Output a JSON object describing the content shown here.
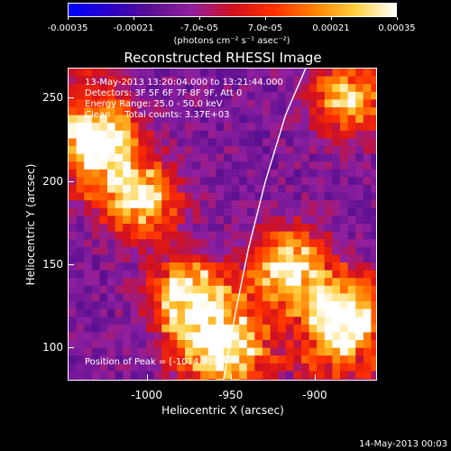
{
  "chart_data": {
    "type": "heatmap",
    "title": "Reconstructed RHESSI Image",
    "xlabel": "Heliocentric X (arcsec)",
    "ylabel": "Heliocentric Y (arcsec)",
    "xlim": [
      -1047,
      -863
    ],
    "ylim": [
      80,
      268
    ],
    "x_ticks": [
      "-1000",
      "-950",
      "-900"
    ],
    "x_tick_values": [
      -1000,
      -950,
      -900
    ],
    "y_ticks": [
      "100",
      "150",
      "200",
      "250"
    ],
    "y_tick_values": [
      100,
      150,
      200,
      250
    ],
    "colorbar": {
      "min": -0.00035,
      "max": 0.00035,
      "tick_labels": [
        "-0.00035",
        "-0.00021",
        "-7.0e-05",
        "7.0e-05",
        "0.00021",
        "0.00035"
      ],
      "tick_values": [
        -0.00035,
        -0.00021,
        -7e-05,
        7e-05,
        0.00021,
        0.00035
      ],
      "unit_label": "(photons cm⁻² s⁻¹ asec⁻²)",
      "colormap": [
        "#0000ff",
        "#2a00c8",
        "#5a1090",
        "#9020a0",
        "#d01020",
        "#ff3000",
        "#ff8000",
        "#ffd040",
        "#ffffff"
      ]
    },
    "annotations": {
      "time_range": "13-May-2013 13:20:04.000 to 13:21:44.000",
      "detectors": "Detectors: 3F 5F 6F 7F 8F 9F, Att 0",
      "energy": "Energy Range: 25.0 - 50.0 keV",
      "method": "Clean     Total counts: 3.37E+03",
      "peak": "Position of Peak = [-1014,215]"
    },
    "bright_regions": [
      {
        "x": -1030,
        "y": 225,
        "level": 0.00035
      },
      {
        "x": -1005,
        "y": 190,
        "level": 0.0003
      },
      {
        "x": -975,
        "y": 130,
        "level": 0.00025
      },
      {
        "x": -955,
        "y": 100,
        "level": 0.0003
      },
      {
        "x": -885,
        "y": 115,
        "level": 0.00035
      },
      {
        "x": -915,
        "y": 150,
        "level": 0.00025
      },
      {
        "x": -880,
        "y": 250,
        "level": 0.0002
      }
    ],
    "limb_curve": {
      "x": [
        -955,
        -948,
        -940,
        -930,
        -918,
        -906
      ],
      "y": [
        80,
        120,
        160,
        200,
        240,
        268
      ]
    }
  },
  "footer": {
    "date": "14-May-2013 00:03"
  }
}
